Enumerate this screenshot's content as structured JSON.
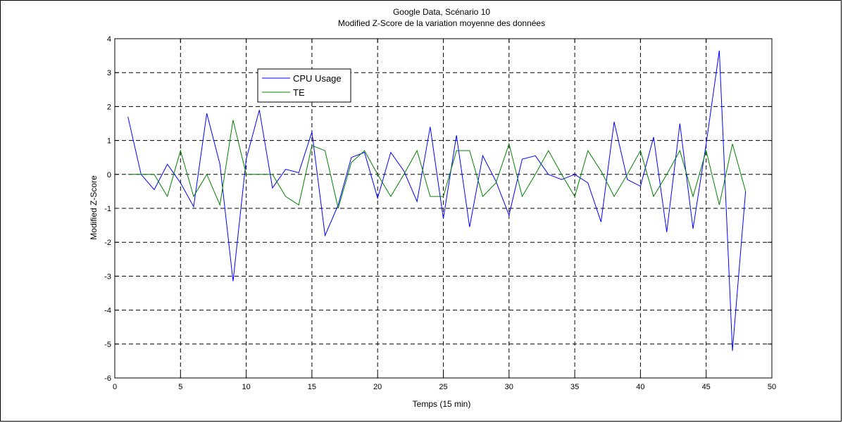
{
  "chart_data": {
    "type": "line",
    "title": "Google Data, Scénario 10",
    "subtitle": "Modified Z-Score de la variation moyenne des données",
    "xlabel": "Temps (15 min)",
    "ylabel": "Modified Z-Score",
    "xlim": [
      0,
      50
    ],
    "ylim": [
      -6,
      4
    ],
    "xticks": [
      0,
      5,
      10,
      15,
      20,
      25,
      30,
      35,
      40,
      45,
      50
    ],
    "yticks": [
      4,
      3,
      2,
      1,
      0,
      -1,
      -2,
      -3,
      -4,
      -5,
      -6
    ],
    "grid": true,
    "legend_position": "upper-left",
    "x": [
      1,
      2,
      3,
      4,
      5,
      6,
      7,
      8,
      9,
      10,
      11,
      12,
      13,
      14,
      15,
      16,
      17,
      18,
      19,
      20,
      21,
      22,
      23,
      24,
      25,
      26,
      27,
      28,
      29,
      30,
      31,
      32,
      33,
      34,
      35,
      36,
      37,
      38,
      39,
      40,
      41,
      42,
      43,
      44,
      45,
      46,
      47,
      48
    ],
    "series": [
      {
        "name": "CPU Usage",
        "color": "#0000ff",
        "values": [
          1.7,
          0,
          -0.45,
          0.3,
          -0.25,
          -0.95,
          1.8,
          0.3,
          -3.15,
          0.45,
          1.9,
          -0.4,
          0.15,
          0.05,
          1.25,
          -1.8,
          -0.9,
          0.5,
          0.65,
          -0.7,
          0.65,
          0.1,
          -0.8,
          1.4,
          -1.3,
          1.15,
          -1.55,
          0.55,
          -0.2,
          -1.2,
          0.45,
          0.55,
          0,
          -0.15,
          0,
          -0.25,
          -1.4,
          1.55,
          -0.15,
          -0.35,
          1.1,
          -1.7,
          1.5,
          -1.6,
          0.9,
          3.65,
          -5.2,
          -0.5
        ]
      },
      {
        "name": "TE",
        "color": "#008000",
        "values": [
          0,
          0,
          0,
          -0.65,
          0.7,
          -0.65,
          0,
          -0.9,
          1.6,
          0,
          0,
          0,
          -0.65,
          -0.9,
          0.85,
          0.7,
          -1,
          0.35,
          0.7,
          0,
          -0.65,
          0,
          0.7,
          -0.65,
          -0.65,
          0.7,
          0.7,
          -0.65,
          -0.25,
          0.9,
          -0.65,
          0,
          0.7,
          0,
          -0.65,
          0.7,
          0.1,
          -0.65,
          0,
          0.7,
          -0.65,
          0,
          0.7,
          -0.65,
          0.7,
          -0.9,
          0.9,
          -0.5
        ]
      }
    ]
  }
}
